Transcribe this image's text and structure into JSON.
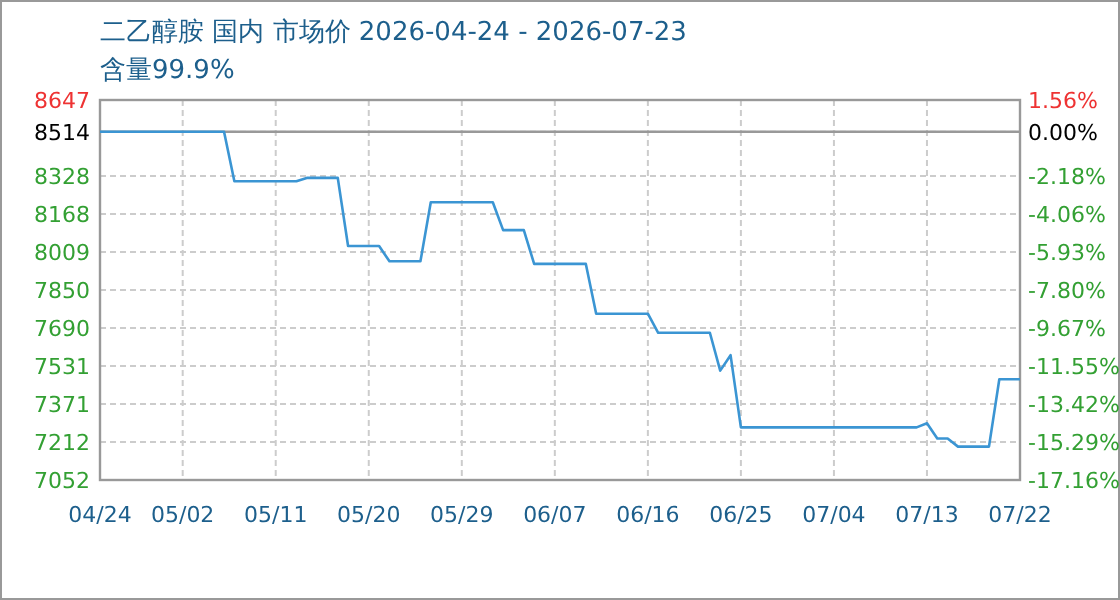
{
  "chart_data": {
    "type": "line",
    "title": "二乙醇胺 国内 市场价 2026-04-24 - 2026-07-23",
    "subtitle": "含量99.9%",
    "x": [
      "2026-04-24",
      "2026-05-06",
      "2026-05-07",
      "2026-05-13",
      "2026-05-14",
      "2026-05-17",
      "2026-05-18",
      "2026-05-21",
      "2026-05-22",
      "2026-05-25",
      "2026-05-26",
      "2026-06-01",
      "2026-06-02",
      "2026-06-04",
      "2026-06-05",
      "2026-06-10",
      "2026-06-11",
      "2026-06-16",
      "2026-06-17",
      "2026-06-22",
      "2026-06-23",
      "2026-06-24",
      "2026-06-25",
      "2026-07-12",
      "2026-07-13",
      "2026-07-14",
      "2026-07-15",
      "2026-07-16",
      "2026-07-19",
      "2026-07-20",
      "2026-07-22"
    ],
    "series": [
      {
        "color": "#3b95d3",
        "values": [
          8514,
          8514,
          8306,
          8306,
          8320,
          8320,
          8034,
          8034,
          7970,
          7970,
          8218,
          8218,
          8101,
          8101,
          7959,
          7959,
          7750,
          7750,
          7670,
          7670,
          7511,
          7576,
          7273,
          7273,
          7290,
          7226,
          7226,
          7192,
          7192,
          7475,
          7475
        ]
      }
    ],
    "xlim": [
      "2026-04-24",
      "2026-07-22"
    ],
    "xticks": [
      {
        "value": "2026-04-24",
        "label": "04/24"
      },
      {
        "value": "2026-05-02",
        "label": "05/02"
      },
      {
        "value": "2026-05-11",
        "label": "05/11"
      },
      {
        "value": "2026-05-20",
        "label": "05/20"
      },
      {
        "value": "2026-05-29",
        "label": "05/29"
      },
      {
        "value": "2026-06-07",
        "label": "06/07"
      },
      {
        "value": "2026-06-16",
        "label": "06/16"
      },
      {
        "value": "2026-06-25",
        "label": "06/25"
      },
      {
        "value": "2026-07-04",
        "label": "07/04"
      },
      {
        "value": "2026-07-13",
        "label": "07/13"
      },
      {
        "value": "2026-07-22",
        "label": "07/22"
      }
    ],
    "ylim": [
      7052,
      8647
    ],
    "yticks": [
      7052,
      7212,
      7371,
      7531,
      7690,
      7850,
      8009,
      8168,
      8328,
      8514,
      8647
    ],
    "y2lim": [
      -17.16,
      1.56
    ],
    "y2ticks": [
      {
        "value": -17.16,
        "label": "-17.16%"
      },
      {
        "value": -15.29,
        "label": "-15.29%"
      },
      {
        "value": -13.42,
        "label": "-13.42%"
      },
      {
        "value": -11.55,
        "label": "-11.55%"
      },
      {
        "value": -9.67,
        "label": "-9.67%"
      },
      {
        "value": -7.8,
        "label": "-7.80%"
      },
      {
        "value": -5.93,
        "label": "-5.93%"
      },
      {
        "value": -4.06,
        "label": "-4.06%"
      },
      {
        "value": -2.18,
        "label": "-2.18%"
      },
      {
        "value": 0,
        "label": "0.00%"
      },
      {
        "value": 1.56,
        "label": "1.56%"
      }
    ],
    "ref_lines": [
      {
        "axis": "y",
        "value": 8514,
        "color": "#999999"
      }
    ],
    "grid": true
  }
}
